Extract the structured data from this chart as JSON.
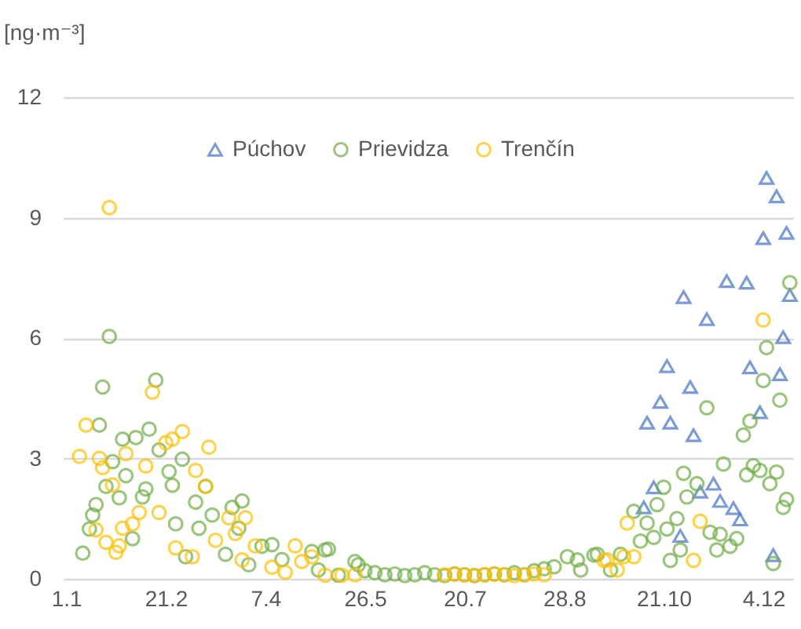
{
  "chart_data": {
    "type": "scatter",
    "ylabel": "[ng·m⁻³]",
    "ylim": [
      0,
      12
    ],
    "yticks": [
      0,
      3,
      6,
      9,
      12
    ],
    "categories": [
      "1.1",
      null,
      null,
      null,
      null,
      null,
      null,
      null,
      null,
      null,
      null,
      null,
      null,
      null,
      null,
      null,
      null,
      null,
      null,
      null,
      null,
      null,
      null,
      null,
      null,
      null,
      null,
      null,
      null,
      null,
      "21.2",
      null,
      null,
      null,
      null,
      null,
      null,
      null,
      null,
      null,
      null,
      null,
      null,
      null,
      null,
      null,
      null,
      null,
      null,
      null,
      null,
      null,
      null,
      null,
      null,
      null,
      null,
      null,
      null,
      null,
      "7.4",
      null,
      null,
      null,
      null,
      null,
      null,
      null,
      null,
      null,
      null,
      null,
      null,
      null,
      null,
      null,
      null,
      null,
      null,
      null,
      null,
      null,
      null,
      null,
      null,
      null,
      null,
      null,
      null,
      null,
      "26.5",
      null,
      null,
      null,
      null,
      null,
      null,
      null,
      null,
      null,
      null,
      null,
      null,
      null,
      null,
      null,
      null,
      null,
      null,
      null,
      null,
      null,
      null,
      null,
      null,
      null,
      null,
      null,
      null,
      null,
      "20.7",
      null,
      null,
      null,
      null,
      null,
      null,
      null,
      null,
      null,
      null,
      null,
      null,
      null,
      null,
      null,
      null,
      null,
      null,
      null,
      null,
      null,
      null,
      null,
      null,
      null,
      null,
      null,
      null,
      null,
      "28.8",
      null,
      null,
      null,
      null,
      null,
      null,
      null,
      null,
      null,
      null,
      null,
      null,
      null,
      null,
      null,
      null,
      null,
      null,
      null,
      null,
      null,
      null,
      null,
      null,
      null,
      null,
      null,
      null,
      null,
      "21.10",
      null,
      null,
      null,
      null,
      null,
      null,
      null,
      null,
      null,
      null,
      null,
      null,
      null,
      null,
      null,
      null,
      null,
      null,
      null,
      null,
      null,
      null,
      null,
      null,
      null,
      null,
      null,
      null,
      null,
      "4.12",
      null,
      null,
      null,
      null,
      null,
      null,
      null,
      null
    ],
    "grid": "y",
    "legend": "top",
    "series": [
      {
        "name": "Púchov",
        "color": "#4472c4",
        "marker": "triangle",
        "values": [
          null,
          null,
          null,
          null,
          null,
          null,
          null,
          null,
          null,
          null,
          null,
          null,
          null,
          null,
          null,
          null,
          null,
          null,
          null,
          null,
          null,
          null,
          null,
          null,
          null,
          null,
          null,
          null,
          null,
          null,
          null,
          null,
          null,
          null,
          null,
          null,
          null,
          null,
          null,
          null,
          null,
          null,
          null,
          null,
          null,
          null,
          null,
          null,
          null,
          null,
          null,
          null,
          null,
          null,
          null,
          null,
          null,
          null,
          null,
          null,
          null,
          null,
          null,
          null,
          null,
          null,
          null,
          null,
          null,
          null,
          null,
          null,
          null,
          null,
          null,
          null,
          null,
          null,
          null,
          null,
          null,
          null,
          null,
          null,
          null,
          null,
          null,
          null,
          null,
          null,
          null,
          null,
          null,
          null,
          null,
          null,
          null,
          null,
          null,
          null,
          null,
          null,
          null,
          null,
          null,
          null,
          null,
          null,
          null,
          null,
          null,
          null,
          null,
          null,
          null,
          null,
          null,
          null,
          null,
          null,
          null,
          null,
          null,
          null,
          null,
          null,
          null,
          null,
          null,
          null,
          null,
          null,
          null,
          null,
          null,
          null,
          null,
          null,
          null,
          null,
          null,
          null,
          null,
          null,
          null,
          null,
          null,
          null,
          null,
          null,
          null,
          null,
          null,
          null,
          null,
          null,
          null,
          null,
          null,
          null,
          null,
          null,
          null,
          null,
          null,
          null,
          null,
          null,
          null,
          null,
          null,
          null,
          null,
          null,
          1.78,
          3.89,
          null,
          2.28,
          null,
          4.41,
          null,
          5.3,
          3.89,
          null,
          null,
          1.07,
          7.02,
          null,
          4.78,
          3.58,
          null,
          2.17,
          null,
          6.47,
          null,
          2.37,
          null,
          1.94,
          null,
          7.42,
          null,
          1.76,
          null,
          1.48,
          null,
          7.38,
          5.27,
          null,
          null,
          4.15,
          8.49,
          9.99,
          null,
          0.59,
          9.53,
          5.1,
          6.02,
          8.62,
          7.07
        ]
      },
      {
        "name": "Prievidza",
        "color": "#70ad47",
        "marker": "circle",
        "values": [
          null,
          null,
          null,
          null,
          null,
          0.64,
          null,
          1.24,
          1.59,
          1.85,
          3.83,
          4.78,
          2.3,
          6.04,
          2.92,
          null,
          2.02,
          3.48,
          2.57,
          null,
          1.0,
          3.52,
          null,
          2.04,
          2.24,
          3.73,
          null,
          4.95,
          3.21,
          null,
          null,
          2.67,
          2.33,
          1.37,
          null,
          2.98,
          0.55,
          null,
          null,
          1.91,
          1.26,
          null,
          2.3,
          null,
          1.59,
          null,
          null,
          null,
          0.61,
          null,
          1.78,
          null,
          1.26,
          1.94,
          null,
          0.35,
          null,
          null,
          null,
          0.81,
          null,
          null,
          0.85,
          null,
          null,
          0.48,
          null,
          null,
          null,
          null,
          null,
          null,
          null,
          null,
          0.68,
          null,
          0.22,
          null,
          0.72,
          0.74,
          null,
          null,
          0.09,
          null,
          null,
          null,
          null,
          0.43,
          0.35,
          null,
          0.2,
          null,
          null,
          0.15,
          null,
          null,
          0.1,
          null,
          null,
          0.12,
          null,
          null,
          0.08,
          null,
          null,
          0.1,
          null,
          null,
          0.15,
          null,
          null,
          0.1,
          null,
          null,
          0.08,
          null,
          null,
          0.12,
          null,
          null,
          0.1,
          null,
          null,
          0.08,
          null,
          null,
          0.1,
          null,
          null,
          0.12,
          null,
          null,
          0.1,
          null,
          null,
          0.15,
          null,
          null,
          0.1,
          null,
          null,
          0.2,
          null,
          null,
          0.25,
          null,
          null,
          0.3,
          null,
          null,
          null,
          0.55,
          null,
          null,
          0.47,
          0.22,
          null,
          null,
          null,
          0.59,
          0.61,
          null,
          null,
          null,
          0.22,
          null,
          null,
          0.61,
          null,
          null,
          null,
          1.68,
          null,
          0.94,
          null,
          1.39,
          null,
          1.03,
          1.85,
          null,
          2.28,
          1.24,
          0.46,
          null,
          1.5,
          0.72,
          2.63,
          2.04,
          null,
          null,
          2.37,
          null,
          null,
          4.26,
          1.16,
          null,
          0.72,
          1.11,
          2.86,
          null,
          0.81,
          null,
          1.0,
          null,
          3.58,
          2.59,
          3.93,
          2.82,
          null,
          2.7,
          4.94,
          5.76,
          2.37,
          0.38,
          2.66,
          4.45,
          1.78,
          1.98,
          7.38
        ]
      },
      {
        "name": "Trenčín",
        "color": "#ffc000",
        "marker": "circle",
        "values": [
          null,
          null,
          null,
          null,
          3.05,
          null,
          3.83,
          null,
          null,
          1.22,
          3.0,
          2.77,
          0.91,
          9.25,
          2.34,
          0.66,
          0.82,
          1.26,
          3.12,
          null,
          1.37,
          null,
          1.65,
          null,
          2.81,
          null,
          4.65,
          null,
          1.65,
          null,
          3.39,
          null,
          3.48,
          0.77,
          null,
          3.67,
          null,
          null,
          0.55,
          2.7,
          null,
          null,
          2.3,
          3.28,
          null,
          0.96,
          null,
          null,
          null,
          1.52,
          null,
          1.13,
          null,
          0.47,
          1.52,
          null,
          null,
          0.82,
          null,
          null,
          null,
          null,
          0.29,
          null,
          null,
          null,
          0.16,
          null,
          null,
          0.82,
          null,
          0.43,
          null,
          null,
          0.55,
          null,
          null,
          null,
          0.09,
          null,
          null,
          null,
          null,
          0.09,
          null,
          null,
          null,
          0.1,
          null,
          null,
          null,
          null,
          null,
          null,
          null,
          null,
          null,
          null,
          null,
          null,
          null,
          null,
          null,
          null,
          null,
          null,
          null,
          null,
          null,
          null,
          null,
          null,
          null,
          null,
          0.1,
          null,
          null,
          0.12,
          null,
          null,
          0.1,
          null,
          null,
          0.08,
          null,
          null,
          0.1,
          null,
          null,
          0.12,
          null,
          null,
          0.1,
          null,
          null,
          0.08,
          null,
          null,
          0.1,
          null,
          null,
          0.12,
          null,
          null,
          0.1,
          null,
          null,
          null,
          null,
          null,
          null,
          null,
          null,
          null,
          null,
          null,
          null,
          null,
          null,
          null,
          null,
          null,
          0.46,
          0.47,
          null,
          null,
          0.22,
          null,
          0.55,
          1.39,
          null,
          0.55,
          null,
          null,
          null,
          null,
          null,
          null,
          null,
          null,
          null,
          null,
          null,
          null,
          null,
          null,
          null,
          null,
          null,
          0.46,
          null,
          1.43,
          null,
          null,
          null,
          null,
          null,
          null,
          null,
          null,
          null,
          null,
          null,
          null,
          null,
          null,
          null,
          null,
          null,
          null,
          6.45,
          null,
          null,
          null,
          null,
          null,
          null,
          null,
          null
        ]
      }
    ]
  }
}
